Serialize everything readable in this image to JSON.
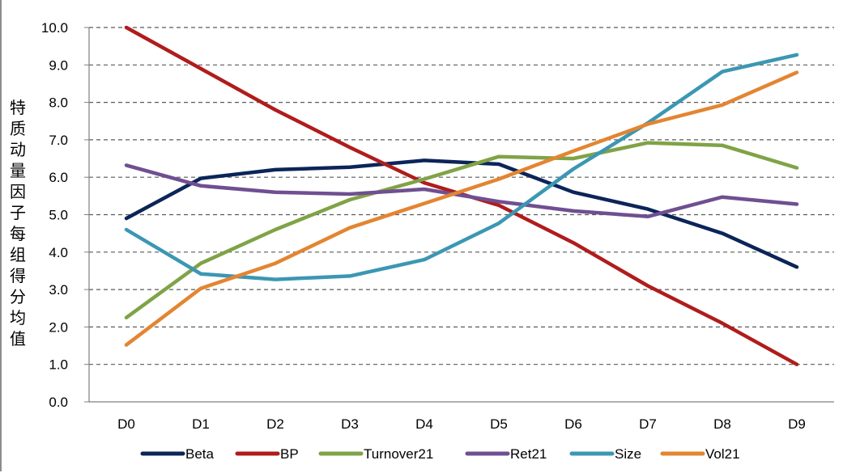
{
  "chart_data": {
    "type": "line",
    "ylabel": "特质动量因子每组得分均值",
    "xlabel": "",
    "title": "",
    "categories": [
      "D0",
      "D1",
      "D2",
      "D3",
      "D4",
      "D5",
      "D6",
      "D7",
      "D8",
      "D9"
    ],
    "ylim": [
      0,
      10
    ],
    "yticks": [
      "0.0",
      "1.0",
      "2.0",
      "3.0",
      "4.0",
      "5.0",
      "6.0",
      "7.0",
      "8.0",
      "9.0",
      "10.0"
    ],
    "grid": "horizontal dashed",
    "legend_position": "bottom",
    "series": [
      {
        "name": "Beta",
        "color": "#0b2559",
        "values": [
          4.9,
          5.97,
          6.2,
          6.27,
          6.45,
          6.35,
          5.6,
          5.15,
          4.5,
          3.6
        ]
      },
      {
        "name": "BP",
        "color": "#b01c1c",
        "values": [
          10.0,
          8.9,
          7.8,
          6.8,
          5.85,
          5.25,
          4.25,
          3.1,
          2.1,
          1.0
        ]
      },
      {
        "name": "Turnover21",
        "color": "#7fa346",
        "values": [
          2.25,
          3.7,
          4.6,
          5.4,
          5.95,
          6.55,
          6.5,
          6.92,
          6.85,
          6.25
        ]
      },
      {
        "name": "Ret21",
        "color": "#6f4f91",
        "values": [
          6.32,
          5.77,
          5.6,
          5.55,
          5.68,
          5.35,
          5.1,
          4.95,
          5.47,
          5.28
        ]
      },
      {
        "name": "Size",
        "color": "#3b97b3",
        "values": [
          4.6,
          3.42,
          3.27,
          3.36,
          3.8,
          4.77,
          6.22,
          7.45,
          8.82,
          9.27
        ]
      },
      {
        "name": "Vol21",
        "color": "#e38531",
        "values": [
          1.52,
          3.03,
          3.7,
          4.65,
          5.3,
          5.95,
          6.7,
          7.42,
          7.93,
          8.8
        ]
      }
    ]
  }
}
